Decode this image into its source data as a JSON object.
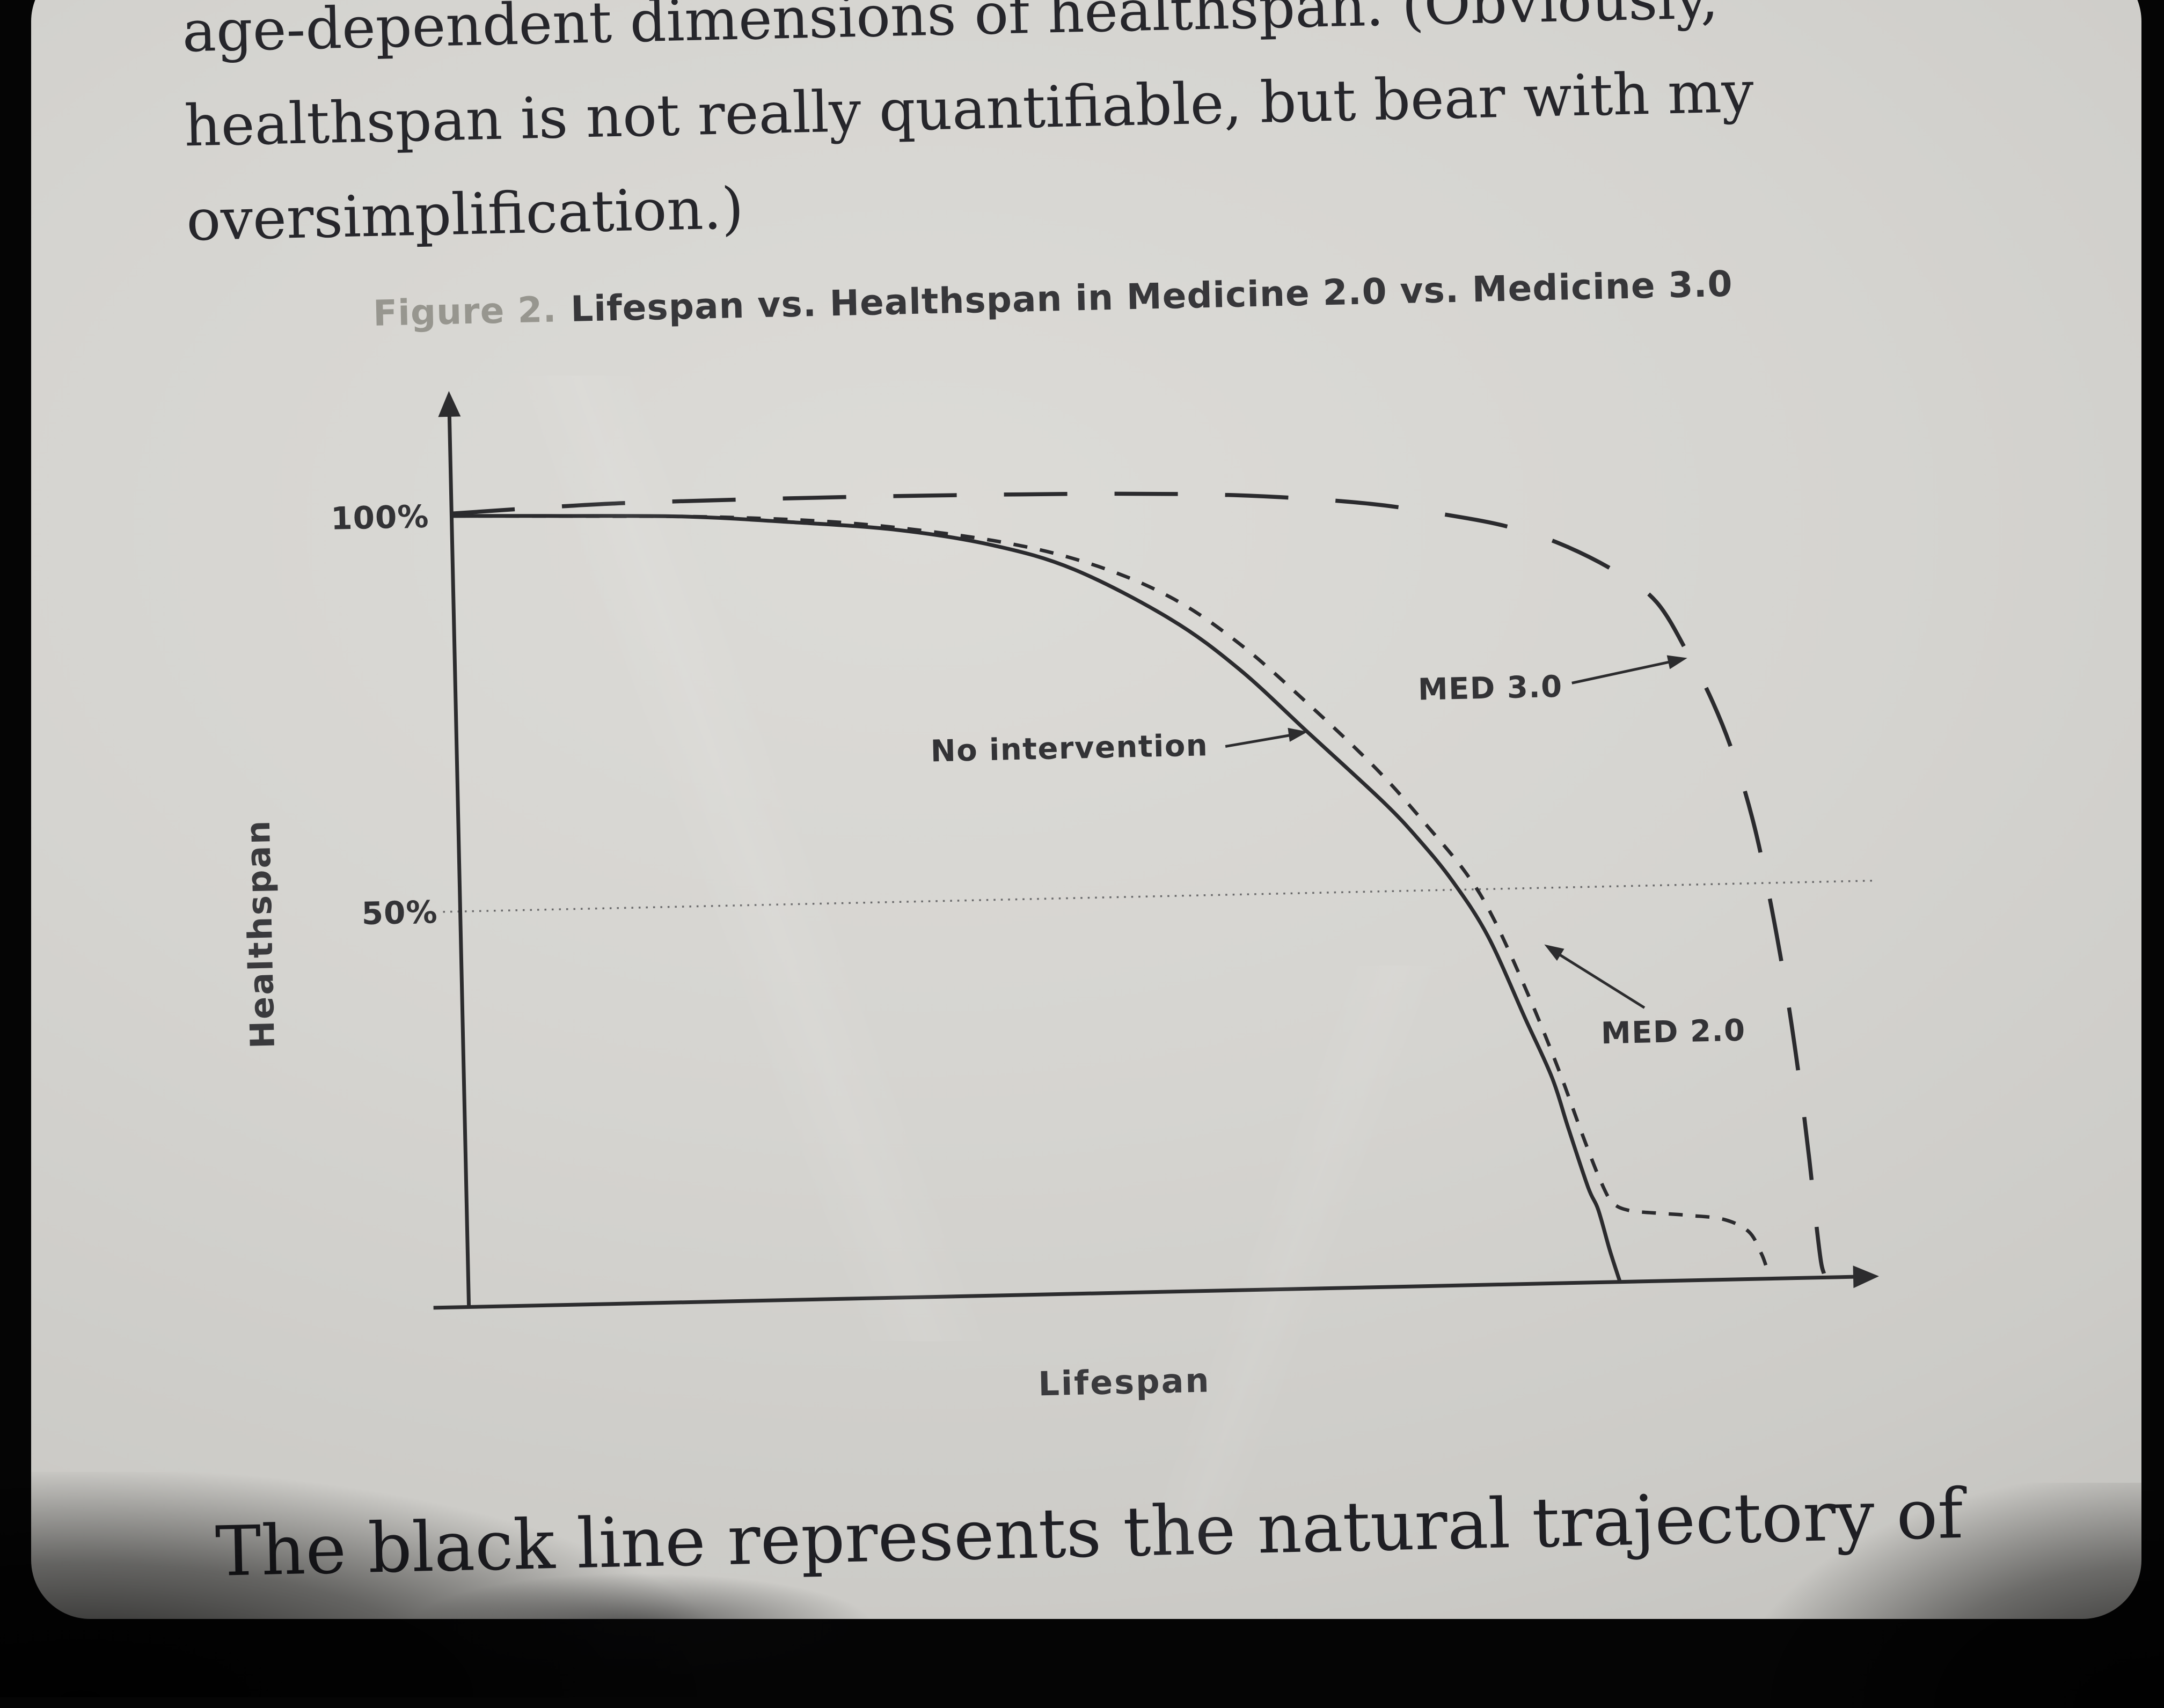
{
  "page": {
    "top_paragraph": {
      "line1": "age-dependent dimensions of healthspan. (Obviously,",
      "line2": "healthspan is not really quantifiable, but bear with my",
      "line3": "oversimplification.)"
    },
    "bottom_paragraph": "The black line represents the natural trajectory of"
  },
  "figure": {
    "label": "Figure 2.",
    "title": "Lifespan vs. Healthspan in Medicine 2.0 vs. Medicine 3.0"
  },
  "chart_data": {
    "type": "line",
    "figure_label": "Figure 2.",
    "title": "Lifespan vs. Healthspan in Medicine 2.0 vs. Medicine 3.0",
    "xlabel": "Lifespan",
    "ylabel": "Healthspan",
    "xlim": [
      0,
      104
    ],
    "ylim": [
      0,
      106
    ],
    "x_ticks": [],
    "y_ticks": [
      {
        "label": "100%",
        "value": 100
      },
      {
        "label": "50%",
        "value": 50
      }
    ],
    "gridlines": [
      {
        "axis": "y",
        "value": 50,
        "style": "dotted"
      }
    ],
    "legend_position": "none",
    "annotations": [
      {
        "text": "No intervention",
        "points_to": "No intervention"
      },
      {
        "text": "MED 3.0",
        "points_to": "MED 3.0"
      },
      {
        "text": "MED 2.0",
        "points_to": "MED 2.0"
      }
    ],
    "series": [
      {
        "name": "No intervention",
        "style": "solid",
        "x": [
          0,
          8,
          17,
          25,
          33,
          40,
          46,
          53,
          58,
          63,
          68.4,
          71,
          73.5,
          76,
          78.6,
          80.5,
          81.6,
          83,
          83.7,
          84.5,
          85.2
        ],
        "y": [
          100,
          99.7,
          99.3,
          98.3,
          97.0,
          94.8,
          91.5,
          85.0,
          78.5,
          70.3,
          61.4,
          56.5,
          51.0,
          44.0,
          33.6,
          26.0,
          19.7,
          12.0,
          9.2,
          4.0,
          0
        ]
      },
      {
        "name": "MED 2.0",
        "style": "short-dash",
        "x": [
          0,
          10,
          20,
          30,
          40,
          47,
          53,
          58,
          63,
          68,
          71.5,
          74.5,
          76.5,
          79,
          81,
          82.8,
          84,
          84.8,
          86,
          88,
          90.5,
          93,
          94.8,
          95.7,
          96.1
        ],
        "y": [
          100,
          99.6,
          99.1,
          97.9,
          95.4,
          92.3,
          87.8,
          81.8,
          74.0,
          65.5,
          58.5,
          52.0,
          46.0,
          36.0,
          27.0,
          18.0,
          12.5,
          10.0,
          9.0,
          8.6,
          8.2,
          7.6,
          6.0,
          3.2,
          1.2
        ]
      },
      {
        "name": "MED 3.0",
        "style": "long-dash",
        "x": [
          0,
          8,
          15,
          30,
          45,
          55,
          62,
          68,
          73,
          78,
          82,
          86,
          89,
          91.3,
          93,
          94.5,
          95.9,
          97,
          98,
          98.8,
          99.4,
          99.8,
          100.1,
          100.3
        ],
        "y": [
          100.3,
          100.9,
          101.2,
          101.3,
          101.1,
          100.7,
          100.0,
          99.0,
          97.6,
          95.8,
          93.4,
          89.8,
          85.8,
          79.0,
          73.0,
          66.0,
          57.0,
          47.0,
          36.0,
          25.0,
          15.0,
          7.0,
          2.0,
          0.5
        ]
      }
    ]
  },
  "colors": {
    "page_background": "#d5d4d0",
    "photo_border": "#050505",
    "ink": "#26262b",
    "figure_label_gray": "#97968f",
    "curve": "#2b2b2e"
  }
}
